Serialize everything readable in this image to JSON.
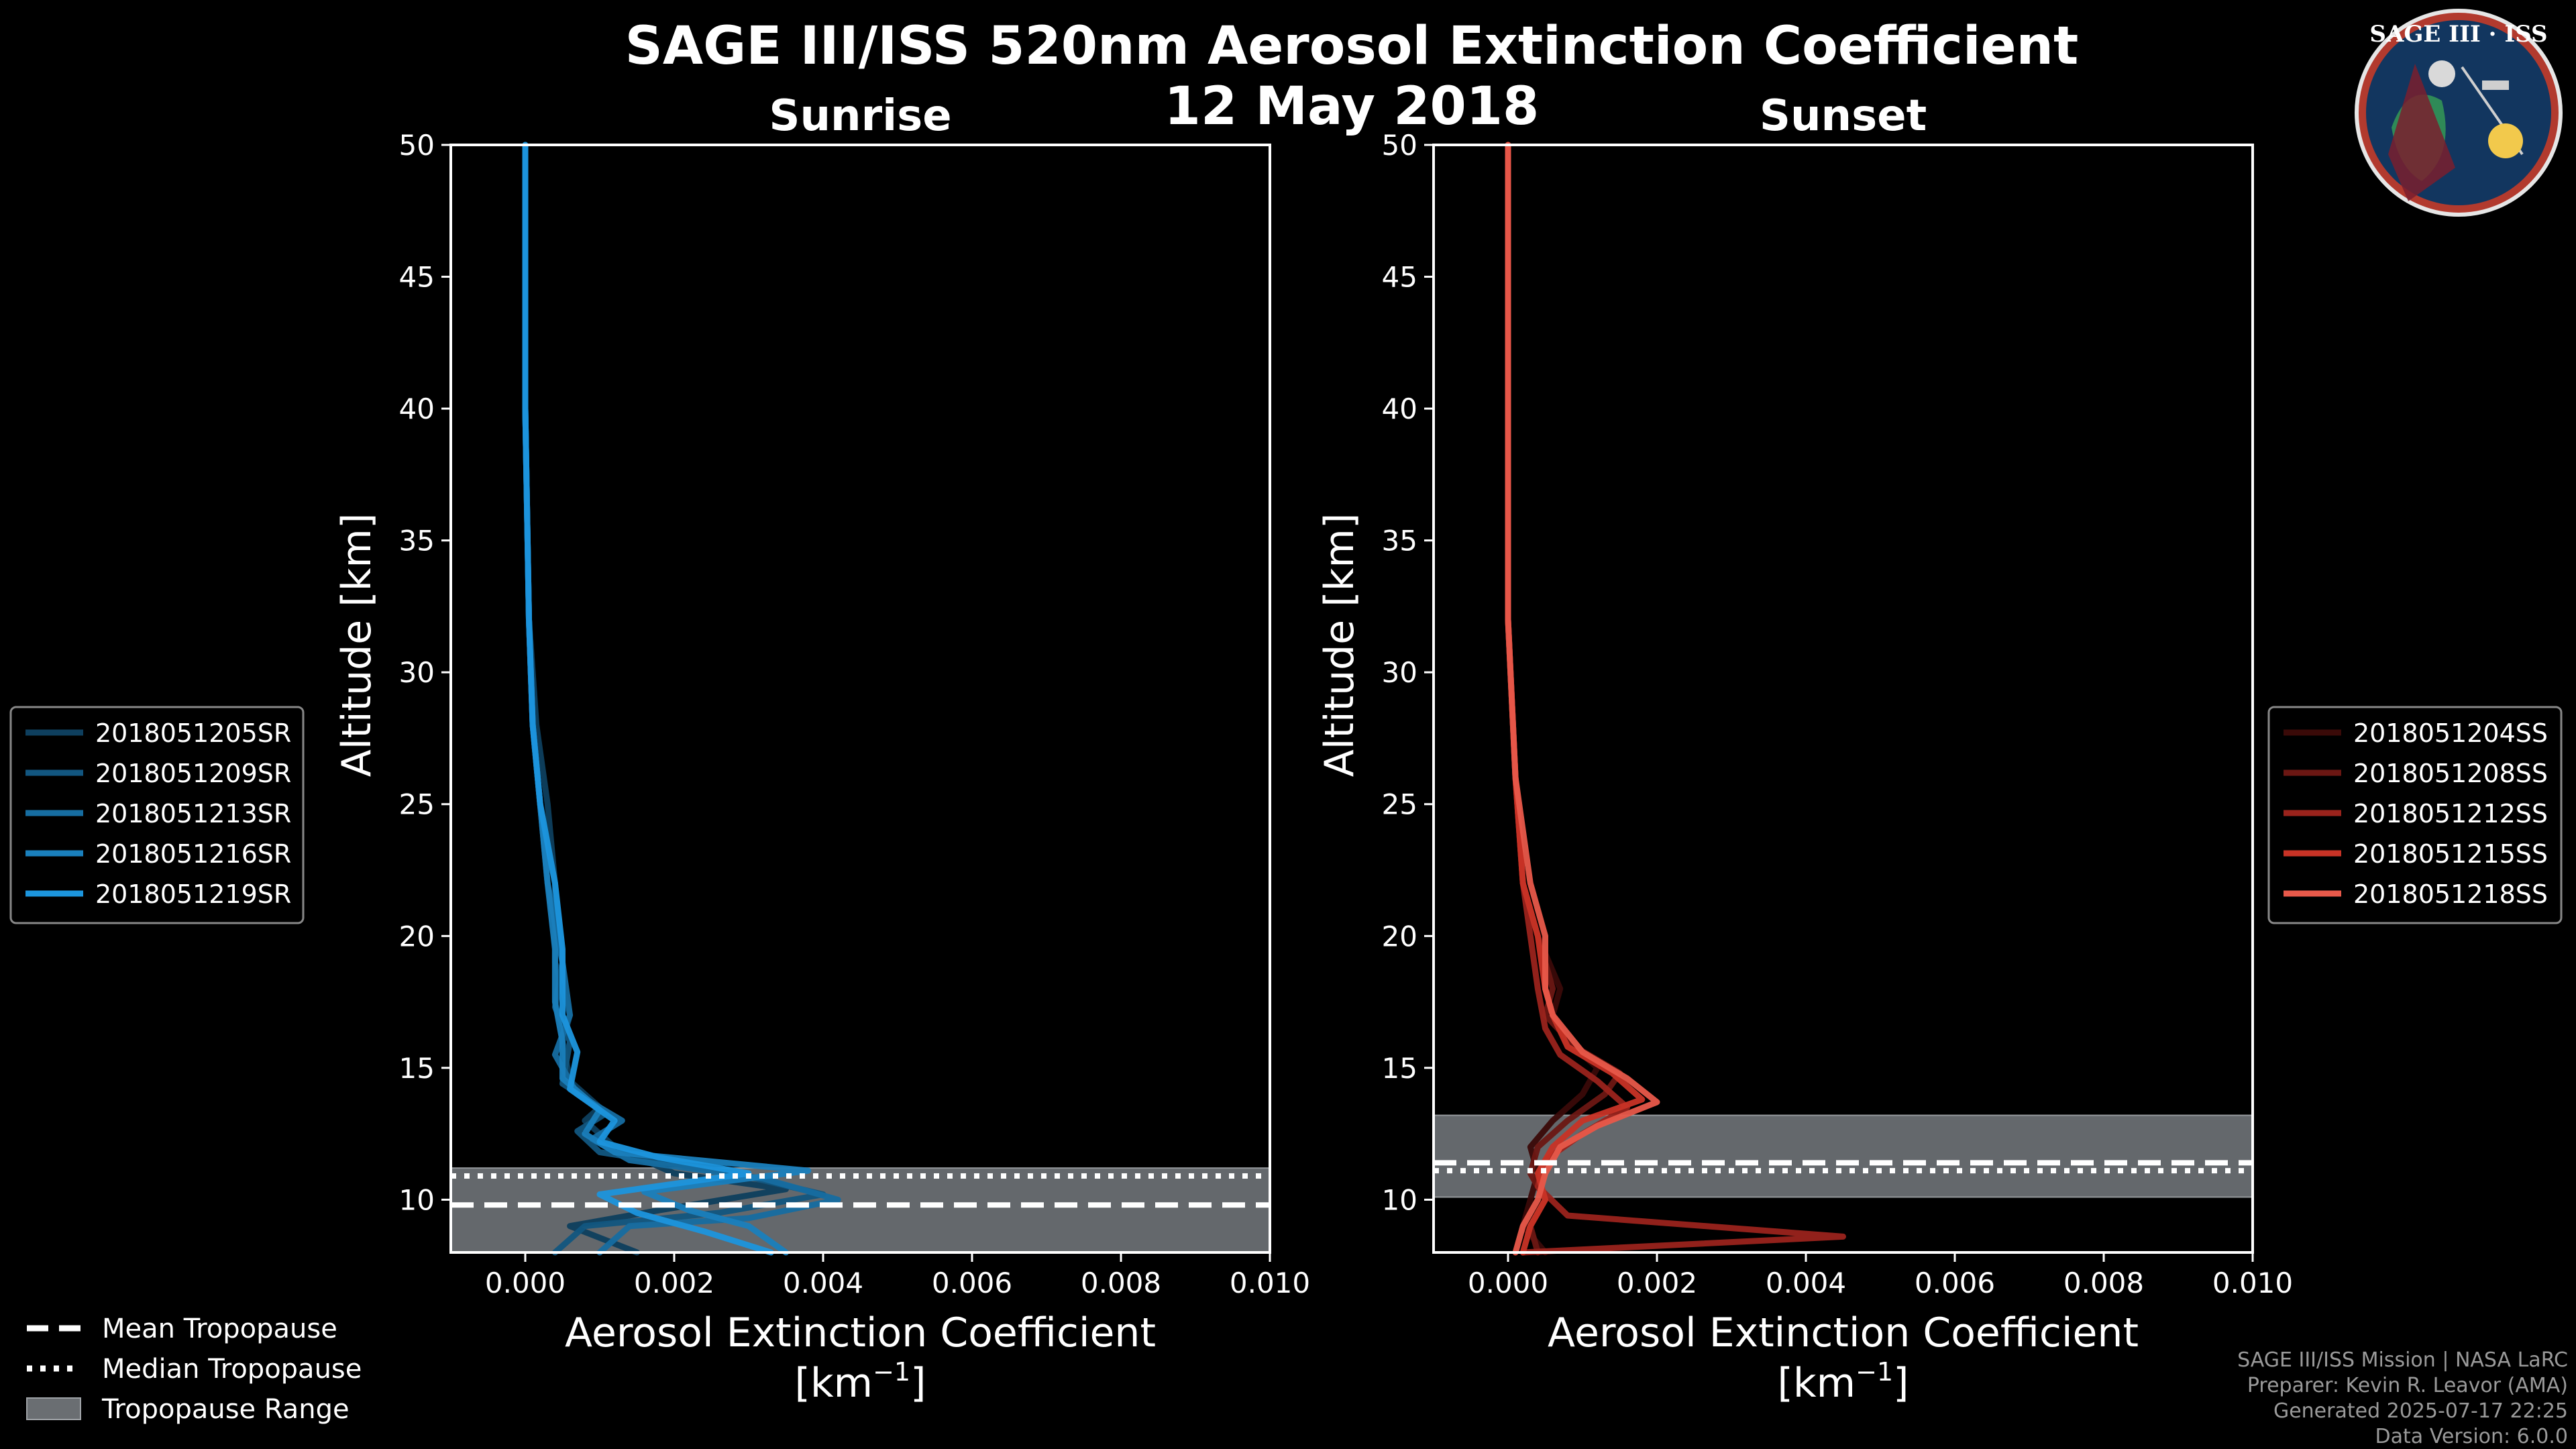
{
  "title_line1": "SAGE III/ISS 520nm Aerosol Extinction Coefficient",
  "title_line2": "12 May 2018",
  "logo": {
    "text": "SAGE III · ISS"
  },
  "footer": [
    "SAGE III/ISS Mission | NASA LaRC",
    "Preparer: Kevin R. Leavor (AMA)",
    "Generated 2025-07-17 22:25",
    "Data Version: 6.0.0"
  ],
  "tropo_legend": [
    {
      "label": "Mean Tropopause",
      "style": "dashed"
    },
    {
      "label": "Median Tropopause",
      "style": "dotted"
    },
    {
      "label": "Tropopause Range",
      "style": "band"
    }
  ],
  "chart_data": [
    {
      "type": "line",
      "title": "Sunrise",
      "xlabel": "Aerosol Extinction Coefficient",
      "xunit_pre": "[km",
      "xunit_sup": "−1",
      "xunit_post": "]",
      "ylabel": "Altitude [km]",
      "xlim": [
        -0.001,
        0.01
      ],
      "ylim": [
        8,
        50
      ],
      "xticks": [
        "0.000",
        "0.002",
        "0.004",
        "0.006",
        "0.008",
        "0.010"
      ],
      "xtick_values": [
        0,
        0.002,
        0.004,
        0.006,
        0.008,
        0.01
      ],
      "yticks": [
        10,
        15,
        20,
        25,
        30,
        35,
        40,
        45,
        50
      ],
      "tropopause": {
        "mean": 9.8,
        "median": 10.9,
        "min": 8.0,
        "max": 11.2
      },
      "series": [
        {
          "name": "2018051205SR",
          "color": "#0e3f5e",
          "x": [
            0.0015,
            0.0006,
            0.0018,
            0.0035,
            0.002,
            0.0012,
            0.0008,
            0.001,
            0.0006,
            0.0005,
            0.0006,
            0.0004,
            0.0004,
            0.0003,
            0.00015,
            5e-05,
            0.0,
            0.0
          ],
          "y": [
            8,
            9,
            9.6,
            10.4,
            11,
            12,
            13,
            13.5,
            14.5,
            16,
            17,
            19,
            22,
            25,
            28,
            32,
            40,
            50
          ]
        },
        {
          "name": "2018051209SR",
          "color": "#125680",
          "x": [
            0.0004,
            0.0008,
            0.0026,
            0.004,
            0.0028,
            0.001,
            0.0007,
            0.0011,
            0.0005,
            0.0006,
            0.0004,
            0.0005,
            0.0004,
            0.0002,
            0.0001,
            5e-05,
            0.0,
            0.0
          ],
          "y": [
            8,
            9,
            9.5,
            10.2,
            11,
            11.8,
            12.6,
            13.3,
            14.4,
            16,
            17.3,
            19,
            22,
            25,
            28,
            32,
            40,
            50
          ]
        },
        {
          "name": "2018051213SR",
          "color": "#166da1",
          "x": [
            0.001,
            0.0014,
            0.003,
            0.0042,
            0.0032,
            0.0014,
            0.0009,
            0.0013,
            0.0007,
            0.0004,
            0.0006,
            0.0005,
            0.0003,
            0.0002,
            0.0001,
            5e-05,
            0.0,
            0.0
          ],
          "y": [
            8,
            9,
            9.3,
            10,
            10.8,
            11.5,
            12.3,
            13,
            14,
            15.5,
            17,
            19,
            22,
            25,
            28,
            32,
            40,
            50
          ]
        },
        {
          "name": "2018051216SR",
          "color": "#1a80bd",
          "x": [
            0.0035,
            0.003,
            0.0022,
            0.0016,
            0.0038,
            0.0012,
            0.0008,
            0.001,
            0.0005,
            0.0005,
            0.0004,
            0.0004,
            0.0003,
            0.0002,
            0.0001,
            5e-05,
            0.0,
            0.0
          ],
          "y": [
            8,
            9,
            9.6,
            10.3,
            11.1,
            11.8,
            12.5,
            13.4,
            14.6,
            16,
            17.5,
            19.5,
            22,
            25,
            28,
            32,
            40,
            50
          ]
        },
        {
          "name": "2018051219SR",
          "color": "#1c95dd",
          "x": [
            0.0033,
            0.0024,
            0.0015,
            0.001,
            0.003,
            0.0018,
            0.001,
            0.0012,
            0.0006,
            0.0007,
            0.0005,
            0.0005,
            0.0004,
            0.0002,
            0.0001,
            5e-05,
            0.0,
            0.0
          ],
          "y": [
            8,
            8.8,
            9.5,
            10.2,
            11,
            11.6,
            12.2,
            13,
            14.2,
            15.6,
            17,
            19.5,
            22,
            25,
            28,
            32,
            40,
            50
          ]
        }
      ]
    },
    {
      "type": "line",
      "title": "Sunset",
      "xlabel": "Aerosol Extinction Coefficient",
      "xunit_pre": "[km",
      "xunit_sup": "−1",
      "xunit_post": "]",
      "ylabel": "Altitude [km]",
      "xlim": [
        -0.001,
        0.01
      ],
      "ylim": [
        8,
        50
      ],
      "xticks": [
        "0.000",
        "0.002",
        "0.004",
        "0.006",
        "0.008",
        "0.010"
      ],
      "xtick_values": [
        0,
        0.002,
        0.004,
        0.006,
        0.008,
        0.01
      ],
      "yticks": [
        10,
        15,
        20,
        25,
        30,
        35,
        40,
        45,
        50
      ],
      "tropopause": {
        "mean": 11.4,
        "median": 11.1,
        "min": 10.1,
        "max": 13.2
      },
      "series": [
        {
          "name": "2018051204SS",
          "color": "#3a0a08",
          "x": [
            0.0005,
            0.0002,
            0.0003,
            0.0004,
            0.0003,
            0.0006,
            0.001,
            0.0012,
            0.0008,
            0.0006,
            0.0007,
            0.0004,
            0.0002,
            0.0001,
            0.0,
            0.0
          ],
          "y": [
            8,
            9,
            10,
            11,
            12,
            13,
            14,
            15,
            16,
            17,
            18,
            20,
            22,
            26,
            32,
            50
          ]
        },
        {
          "name": "2018051208SS",
          "color": "#6b1713",
          "x": [
            0.0004,
            0.0003,
            0.0005,
            0.0003,
            0.0004,
            0.0008,
            0.0013,
            0.0015,
            0.0009,
            0.0005,
            0.0006,
            0.0004,
            0.0002,
            0.0001,
            0.0,
            0.0
          ],
          "y": [
            8,
            9,
            10,
            11,
            12,
            13,
            14,
            14.8,
            15.8,
            17,
            18,
            20,
            22,
            26,
            32,
            50
          ]
        },
        {
          "name": "2018051212SS",
          "color": "#9a231c",
          "x": [
            0.0002,
            0.0045,
            0.0008,
            0.0004,
            0.0005,
            0.001,
            0.0016,
            0.0012,
            0.0007,
            0.0005,
            0.0004,
            0.0003,
            0.0002,
            0.0001,
            0.0,
            0.0
          ],
          "y": [
            8,
            8.6,
            9.4,
            10.5,
            11.5,
            12.5,
            13.5,
            14.5,
            15.5,
            16.5,
            18,
            20,
            22,
            26,
            32,
            50
          ]
        },
        {
          "name": "2018051215SS",
          "color": "#c83326",
          "x": [
            0.0002,
            0.0003,
            0.0005,
            0.0004,
            0.0006,
            0.001,
            0.0018,
            0.0014,
            0.0008,
            0.0006,
            0.0005,
            0.0004,
            0.0002,
            0.0001,
            0.0,
            0.0
          ],
          "y": [
            8,
            9,
            10,
            11,
            12,
            13,
            13.8,
            14.8,
            15.8,
            17,
            18,
            20,
            22,
            26,
            32,
            50
          ]
        },
        {
          "name": "2018051218SS",
          "color": "#e8594a",
          "x": [
            0.0001,
            0.0002,
            0.0004,
            0.0005,
            0.0007,
            0.0012,
            0.002,
            0.0016,
            0.001,
            0.0006,
            0.0005,
            0.0005,
            0.0003,
            0.0001,
            0.0,
            0.0
          ],
          "y": [
            8,
            9,
            10,
            11,
            12,
            12.8,
            13.7,
            14.6,
            15.6,
            17,
            18,
            20,
            22,
            26,
            32,
            50
          ]
        }
      ]
    }
  ]
}
